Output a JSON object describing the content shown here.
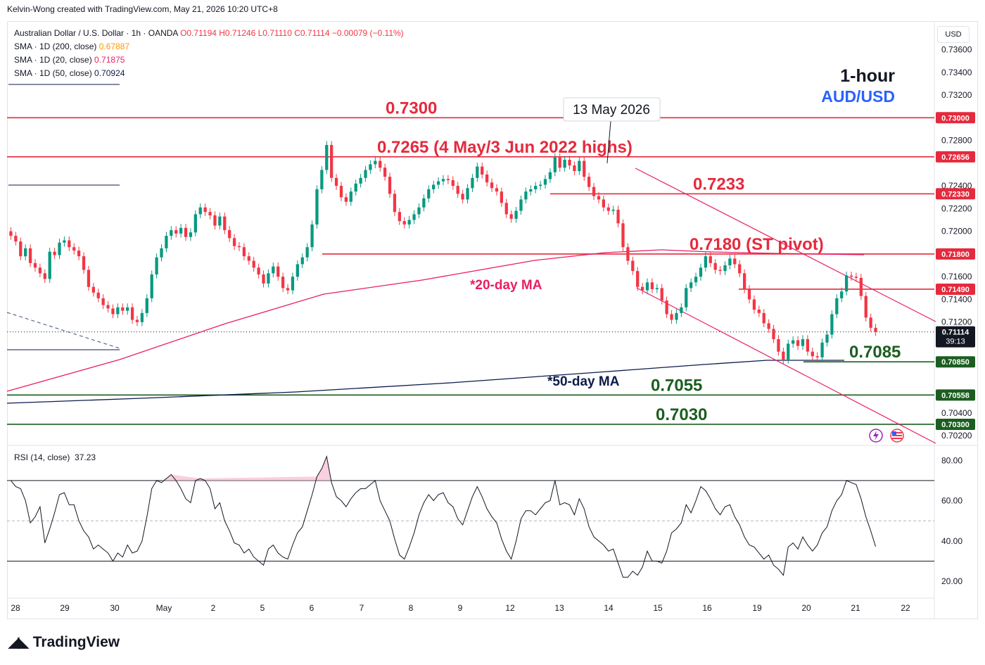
{
  "header": {
    "creator": "Kelvin-Wong created with TradingView.com, May 21, 2026 10:20 UTC+8"
  },
  "legend": {
    "symbol": "Australian Dollar / U.S. Dollar · 1h · OANDA",
    "ohlc": "O0.71194  H0.71246  L0.71110  C0.71114  −0.00079 (−0.11%)",
    "ma200_label": "SMA · 1D (200, close)",
    "ma200_value": "0.67887",
    "ma200_color": "#ff9800",
    "ma20_label": "SMA · 1D (20, close)",
    "ma20_value": "0.71875",
    "ma20_color": "#e91e63",
    "ma50_label": "SMA · 1D (50, close)",
    "ma50_value": "0.70924",
    "ma50_color": "#0d1b4b"
  },
  "currency_button": "USD",
  "rsi_legend": {
    "label": "RSI (14, close)",
    "value": "37.23"
  },
  "branding": "TradingView",
  "colors": {
    "up": "#089981",
    "down": "#f23645",
    "resistance": "#e52a3d",
    "support": "#1b5e20",
    "ma20": "#e91e63",
    "ma50": "#0d1b4b"
  },
  "chart_data": [
    {
      "type": "candlestick",
      "title": "1-hour",
      "subtitle": "AUD/USD",
      "x_ticks": [
        "28",
        "29",
        "30",
        "May",
        "2",
        "5",
        "6",
        "7",
        "8",
        "9",
        "12",
        "13",
        "14",
        "15",
        "16",
        "19",
        "20",
        "21",
        "22"
      ],
      "y_ticks": [
        "0.73600",
        "0.73400",
        "0.73200",
        "0.72800",
        "0.72400",
        "0.72200",
        "0.72000",
        "0.71600",
        "0.71400",
        "0.71200",
        "0.70400",
        "0.70200"
      ],
      "ylim": [
        0.7012,
        0.7382
      ],
      "levels": [
        {
          "value": 0.73,
          "axis_label": "0.73000",
          "text": "0.7300",
          "kind": "resistance"
        },
        {
          "value": 0.72656,
          "axis_label": "0.72656",
          "text": "0.7265 (4 May/3 Jun 2022 highs)",
          "kind": "resistance"
        },
        {
          "value": 0.7233,
          "axis_label": "0.72330",
          "text": "0.7233",
          "kind": "resistance"
        },
        {
          "value": 0.718,
          "axis_label": "0.71800",
          "text": "0.7180 (ST pivot)",
          "kind": "resistance"
        },
        {
          "value": 0.7149,
          "axis_label": "0.71490",
          "text": "",
          "kind": "resistance"
        },
        {
          "value": 0.7085,
          "axis_label": "0.70850",
          "text": "0.7085",
          "kind": "support"
        },
        {
          "value": 0.70558,
          "axis_label": "0.70558",
          "text": "0.7055",
          "kind": "support"
        },
        {
          "value": 0.703,
          "axis_label": "0.70300",
          "text": "0.7030",
          "kind": "support"
        }
      ],
      "last_price": {
        "value": 0.71114,
        "label": "0.71114",
        "countdown": "39:13"
      },
      "annotations": [
        "13 May 2026",
        "*20-day MA",
        "*50-day MA"
      ],
      "series": [
        {
          "name": "AUD/USD",
          "close": [
            0.7196,
            0.7191,
            0.7178,
            0.7185,
            0.7172,
            0.7168,
            0.7163,
            0.7158,
            0.7182,
            0.7179,
            0.719,
            0.7192,
            0.7186,
            0.7183,
            0.7178,
            0.7166,
            0.7151,
            0.7146,
            0.7141,
            0.7135,
            0.7132,
            0.7127,
            0.7133,
            0.713,
            0.7133,
            0.7122,
            0.712,
            0.7128,
            0.7141,
            0.7162,
            0.7177,
            0.7185,
            0.7196,
            0.7201,
            0.7198,
            0.7203,
            0.7195,
            0.7199,
            0.7215,
            0.7221,
            0.7217,
            0.7214,
            0.7205,
            0.7213,
            0.7201,
            0.7194,
            0.7187,
            0.7186,
            0.7178,
            0.7174,
            0.7168,
            0.7162,
            0.7154,
            0.7163,
            0.7169,
            0.716,
            0.715,
            0.7148,
            0.716,
            0.7171,
            0.7177,
            0.7186,
            0.7206,
            0.7237,
            0.7254,
            0.7276,
            0.7247,
            0.724,
            0.723,
            0.7226,
            0.7235,
            0.7242,
            0.7247,
            0.7254,
            0.7259,
            0.7262,
            0.7256,
            0.7248,
            0.7233,
            0.7217,
            0.7209,
            0.7206,
            0.721,
            0.7215,
            0.7221,
            0.7229,
            0.7237,
            0.7241,
            0.7244,
            0.7246,
            0.7245,
            0.724,
            0.7233,
            0.7228,
            0.7238,
            0.7247,
            0.7257,
            0.725,
            0.7243,
            0.7238,
            0.7235,
            0.7225,
            0.7215,
            0.7211,
            0.7218,
            0.7228,
            0.7235,
            0.7237,
            0.724,
            0.7241,
            0.7246,
            0.7252,
            0.7265,
            0.7256,
            0.7263,
            0.7258,
            0.7253,
            0.7262,
            0.7248,
            0.7239,
            0.7231,
            0.7228,
            0.7221,
            0.7218,
            0.7219,
            0.7207,
            0.7186,
            0.7174,
            0.7165,
            0.7151,
            0.7148,
            0.7155,
            0.7149,
            0.715,
            0.7139,
            0.7127,
            0.7122,
            0.7128,
            0.7133,
            0.715,
            0.7155,
            0.716,
            0.7168,
            0.7178,
            0.7172,
            0.7166,
            0.7165,
            0.717,
            0.7176,
            0.7171,
            0.7163,
            0.7149,
            0.714,
            0.7131,
            0.7128,
            0.7119,
            0.7114,
            0.7105,
            0.7094,
            0.7087,
            0.7101,
            0.7104,
            0.7099,
            0.7105,
            0.7094,
            0.709,
            0.7089,
            0.7102,
            0.7109,
            0.7127,
            0.7141,
            0.7147,
            0.7161,
            0.716,
            0.7159,
            0.7143,
            0.7124,
            0.7115,
            0.71114
          ]
        }
      ]
    },
    {
      "type": "line",
      "title": "RSI (14, close)",
      "y_ticks": [
        "80.00",
        "60.00",
        "40.00",
        "20.00"
      ],
      "ylim": [
        13,
        85
      ],
      "bands": [
        70,
        50,
        30
      ],
      "series": [
        {
          "name": "RSI (14, close)",
          "values": [
            70,
            67,
            66,
            60,
            49,
            52,
            57,
            39,
            46,
            54,
            63,
            64,
            58,
            58,
            50,
            45,
            42,
            36,
            38,
            36,
            34,
            30,
            34,
            32,
            38,
            34,
            35,
            40,
            52,
            66,
            70,
            69,
            71,
            73,
            70,
            66,
            61,
            59,
            70,
            71,
            70,
            66,
            56,
            59,
            50,
            45,
            39,
            38,
            34,
            36,
            32,
            30,
            28,
            36,
            38,
            34,
            32,
            31,
            38,
            44,
            47,
            55,
            63,
            72,
            76,
            82,
            69,
            62,
            60,
            57,
            61,
            64,
            66,
            66,
            68,
            70,
            60,
            55,
            50,
            41,
            33,
            31,
            37,
            44,
            53,
            59,
            63,
            60,
            63,
            64,
            59,
            57,
            51,
            48,
            55,
            62,
            67,
            62,
            56,
            52,
            49,
            41,
            35,
            31,
            40,
            51,
            55,
            55,
            53,
            56,
            59,
            60,
            70,
            58,
            59,
            58,
            53,
            61,
            56,
            47,
            42,
            40,
            38,
            35,
            36,
            29,
            22,
            22,
            25,
            23,
            27,
            35,
            30,
            30,
            29,
            35,
            44,
            46,
            49,
            58,
            54,
            60,
            67,
            65,
            61,
            56,
            53,
            57,
            58,
            52,
            48,
            42,
            38,
            37,
            34,
            31,
            33,
            28,
            26,
            23,
            37,
            39,
            36,
            42,
            38,
            35,
            38,
            44,
            47,
            55,
            60,
            63,
            70,
            69,
            68,
            61,
            52,
            45,
            37.23
          ]
        }
      ]
    }
  ]
}
